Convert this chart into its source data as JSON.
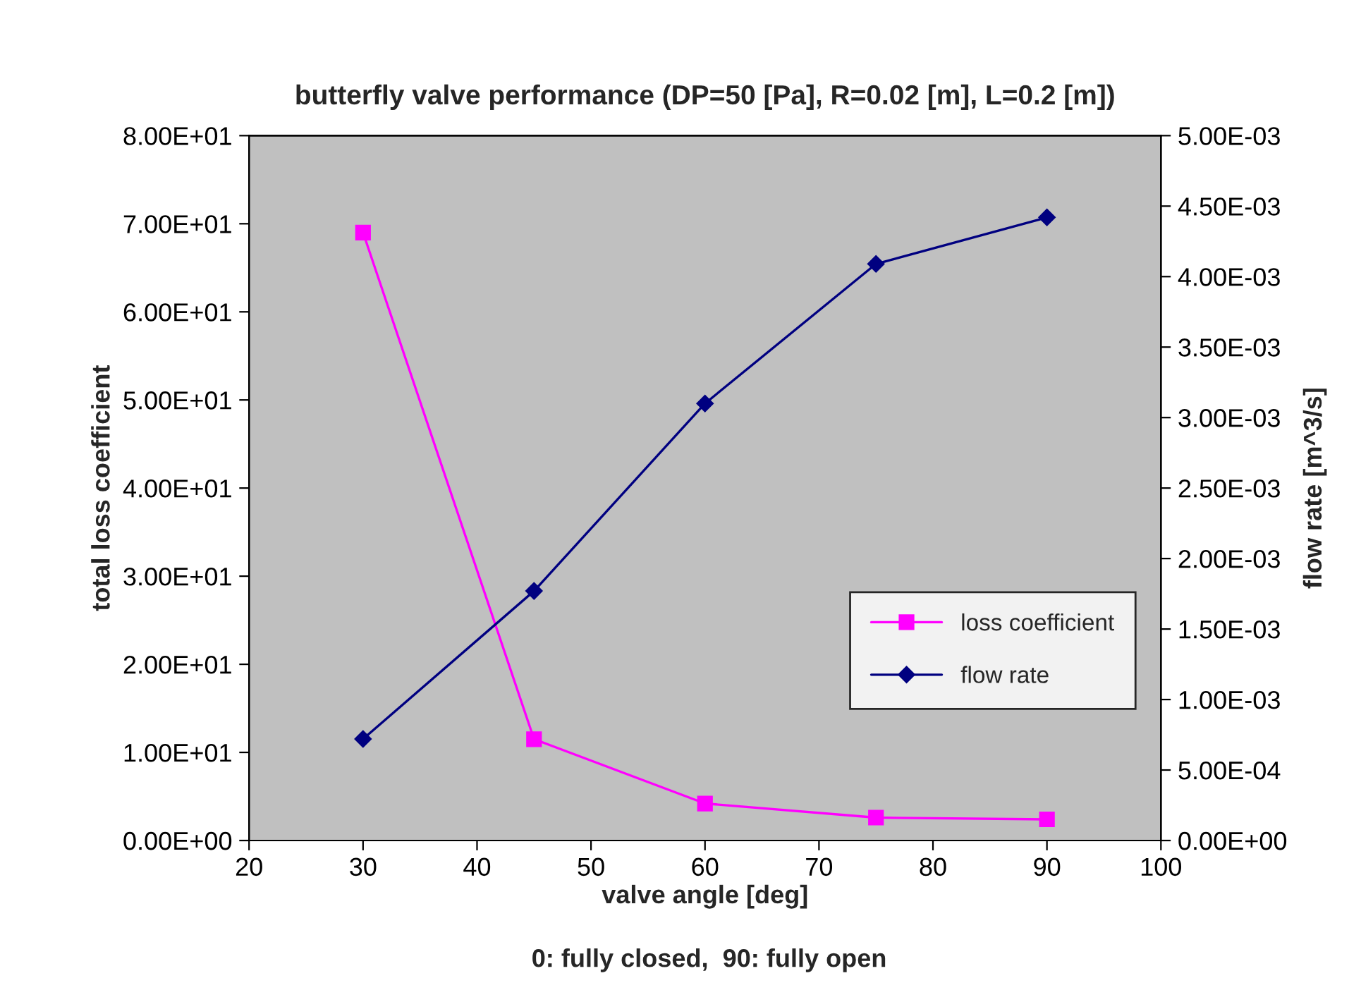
{
  "chart_data": {
    "type": "line",
    "title": "butterfly valve performance (DP=50 [Pa], R=0.02 [m], L=0.2 [m])",
    "xlabel": "valve angle [deg]",
    "ylabel": "total loss coefficient",
    "y2label": "flow rate [m^3/s]",
    "annotations": [
      "0: fully closed,  90: fully open"
    ],
    "x": [
      30,
      45,
      60,
      75,
      90
    ],
    "series": [
      {
        "name": "loss coefficient",
        "color": "#ff00ff",
        "marker": "square",
        "values": [
          69,
          11.5,
          4.2,
          2.6,
          2.4
        ]
      },
      {
        "name": "flow rate",
        "color": "#000080",
        "marker": "diamond",
        "axis": "y2",
        "values": [
          0.00072,
          0.00177,
          0.0031,
          0.00409,
          0.00442
        ]
      }
    ],
    "xlim": [
      20,
      100
    ],
    "xticks": [
      20,
      30,
      40,
      50,
      60,
      70,
      80,
      90,
      100
    ],
    "ylim": [
      0,
      80
    ],
    "yticks": [
      {
        "value": 0,
        "label": "0.00E+00"
      },
      {
        "value": 10,
        "label": "1.00E+01"
      },
      {
        "value": 20,
        "label": "2.00E+01"
      },
      {
        "value": 30,
        "label": "3.00E+01"
      },
      {
        "value": 40,
        "label": "4.00E+01"
      },
      {
        "value": 50,
        "label": "5.00E+01"
      },
      {
        "value": 60,
        "label": "6.00E+01"
      },
      {
        "value": 70,
        "label": "7.00E+01"
      },
      {
        "value": 80,
        "label": "8.00E+01"
      }
    ],
    "y2lim": [
      0,
      0.005
    ],
    "y2ticks": [
      {
        "value": 0,
        "label": "0.00E+00"
      },
      {
        "value": 0.0005,
        "label": "5.00E-04"
      },
      {
        "value": 0.001,
        "label": "1.00E-03"
      },
      {
        "value": 0.0015,
        "label": "1.50E-03"
      },
      {
        "value": 0.002,
        "label": "2.00E-03"
      },
      {
        "value": 0.0025,
        "label": "2.50E-03"
      },
      {
        "value": 0.003,
        "label": "3.00E-03"
      },
      {
        "value": 0.0035,
        "label": "3.50E-03"
      },
      {
        "value": 0.004,
        "label": "4.00E-03"
      },
      {
        "value": 0.0045,
        "label": "4.50E-03"
      },
      {
        "value": 0.005,
        "label": "5.00E-03"
      }
    ],
    "grid": false,
    "legend": "bottom right"
  }
}
